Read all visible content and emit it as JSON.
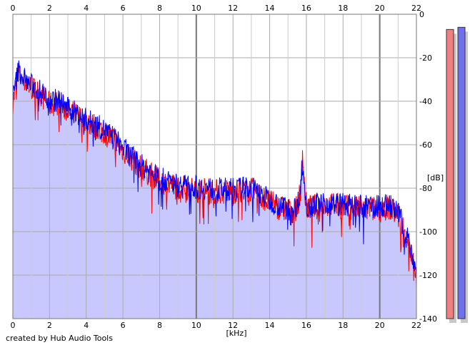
{
  "credit": "created by Hub Audio Tools",
  "chart_data": {
    "type": "line",
    "title": "",
    "xlabel": "[kHz]",
    "ylabel": "[dB]",
    "xlim": [
      0,
      22
    ],
    "ylim": [
      -140,
      0
    ],
    "x_ticks": [
      0,
      2,
      4,
      6,
      8,
      10,
      12,
      14,
      16,
      18,
      20,
      22
    ],
    "y_ticks": [
      0,
      -20,
      -40,
      -60,
      -80,
      -100,
      -120,
      -140
    ],
    "grid": true,
    "fill_color": "#c8c8ff",
    "series": [
      {
        "color": "#ff0000",
        "x": [
          0,
          0.3,
          0.8,
          1.5,
          2,
          2.5,
          3,
          3.5,
          4,
          4.5,
          5,
          5.5,
          6,
          6.5,
          7,
          7.5,
          8,
          9,
          10,
          11,
          12,
          13,
          13.5,
          14,
          14.5,
          15,
          15.5,
          15.7,
          15.8,
          15.9,
          16,
          16.5,
          17,
          18,
          19,
          20,
          20.5,
          21,
          21.5,
          22
        ],
        "values": [
          -40,
          -27,
          -32,
          -36,
          -41,
          -40,
          -44,
          -46,
          -49,
          -51,
          -54,
          -57,
          -62,
          -66,
          -70,
          -73,
          -76,
          -79,
          -80,
          -81,
          -81,
          -80,
          -83,
          -86,
          -88,
          -90,
          -89,
          -79,
          -62,
          -80,
          -88,
          -88,
          -87,
          -88,
          -89,
          -89,
          -88,
          -92,
          -102,
          -120
        ]
      },
      {
        "color": "#0000ff",
        "x": [
          0,
          0.3,
          0.8,
          1.5,
          2,
          2.5,
          3,
          3.5,
          4,
          4.5,
          5,
          5.5,
          6,
          6.5,
          7,
          7.5,
          8,
          9,
          10,
          11,
          12,
          13,
          13.5,
          14,
          14.5,
          15,
          15.5,
          15.7,
          15.8,
          15.9,
          16,
          16.5,
          17,
          18,
          19,
          20,
          20.5,
          21,
          21.5,
          22
        ],
        "values": [
          -38,
          -25,
          -31,
          -35,
          -39,
          -39,
          -43,
          -45,
          -48,
          -50,
          -53,
          -56,
          -61,
          -65,
          -69,
          -72,
          -75,
          -78,
          -79,
          -80,
          -80,
          -79,
          -82,
          -85,
          -87,
          -89,
          -88,
          -78,
          -68,
          -79,
          -87,
          -87,
          -86,
          -87,
          -88,
          -88,
          -87,
          -91,
          -101,
          -118
        ]
      }
    ],
    "level_meters": [
      {
        "color": "#f08080",
        "level_db": -7
      },
      {
        "color": "#7070ee",
        "level_db": -6
      }
    ]
  }
}
